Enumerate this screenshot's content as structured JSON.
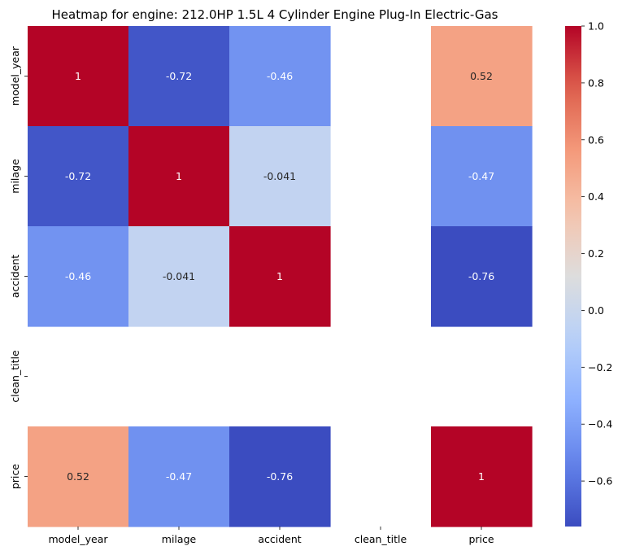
{
  "chart_data": {
    "type": "heatmap",
    "title": "Heatmap for engine: 212.0HP 1.5L 4 Cylinder Engine Plug-In Electric-Gas",
    "x_labels": [
      "model_year",
      "milage",
      "accident",
      "clean_title",
      "price"
    ],
    "y_labels": [
      "model_year",
      "milage",
      "accident",
      "clean_title",
      "price"
    ],
    "values": [
      [
        1,
        -0.72,
        -0.46,
        null,
        0.52
      ],
      [
        -0.72,
        1,
        -0.041,
        null,
        -0.47
      ],
      [
        -0.46,
        -0.041,
        1,
        null,
        -0.76
      ],
      [
        null,
        null,
        null,
        null,
        null
      ],
      [
        0.52,
        -0.47,
        -0.76,
        null,
        1
      ]
    ],
    "annotations": [
      [
        "1",
        "-0.72",
        "-0.46",
        "",
        "0.52"
      ],
      [
        "-0.72",
        "1",
        "-0.041",
        "",
        "-0.47"
      ],
      [
        "-0.46",
        "-0.041",
        "1",
        "",
        "-0.76"
      ],
      [
        "",
        "",
        "",
        "",
        ""
      ],
      [
        "0.52",
        "-0.47",
        "-0.76",
        "",
        "1"
      ]
    ],
    "colormap": "coolwarm",
    "vmin": -0.76,
    "vmax": 1.0,
    "colorbar": {
      "ticks": [
        1.0,
        0.8,
        0.6,
        0.4,
        0.2,
        0.0,
        -0.2,
        -0.4,
        -0.6
      ],
      "tick_labels": [
        "1.0",
        "0.8",
        "0.6",
        "0.4",
        "0.2",
        "0.0",
        "−0.2",
        "−0.4",
        "−0.6"
      ]
    }
  }
}
